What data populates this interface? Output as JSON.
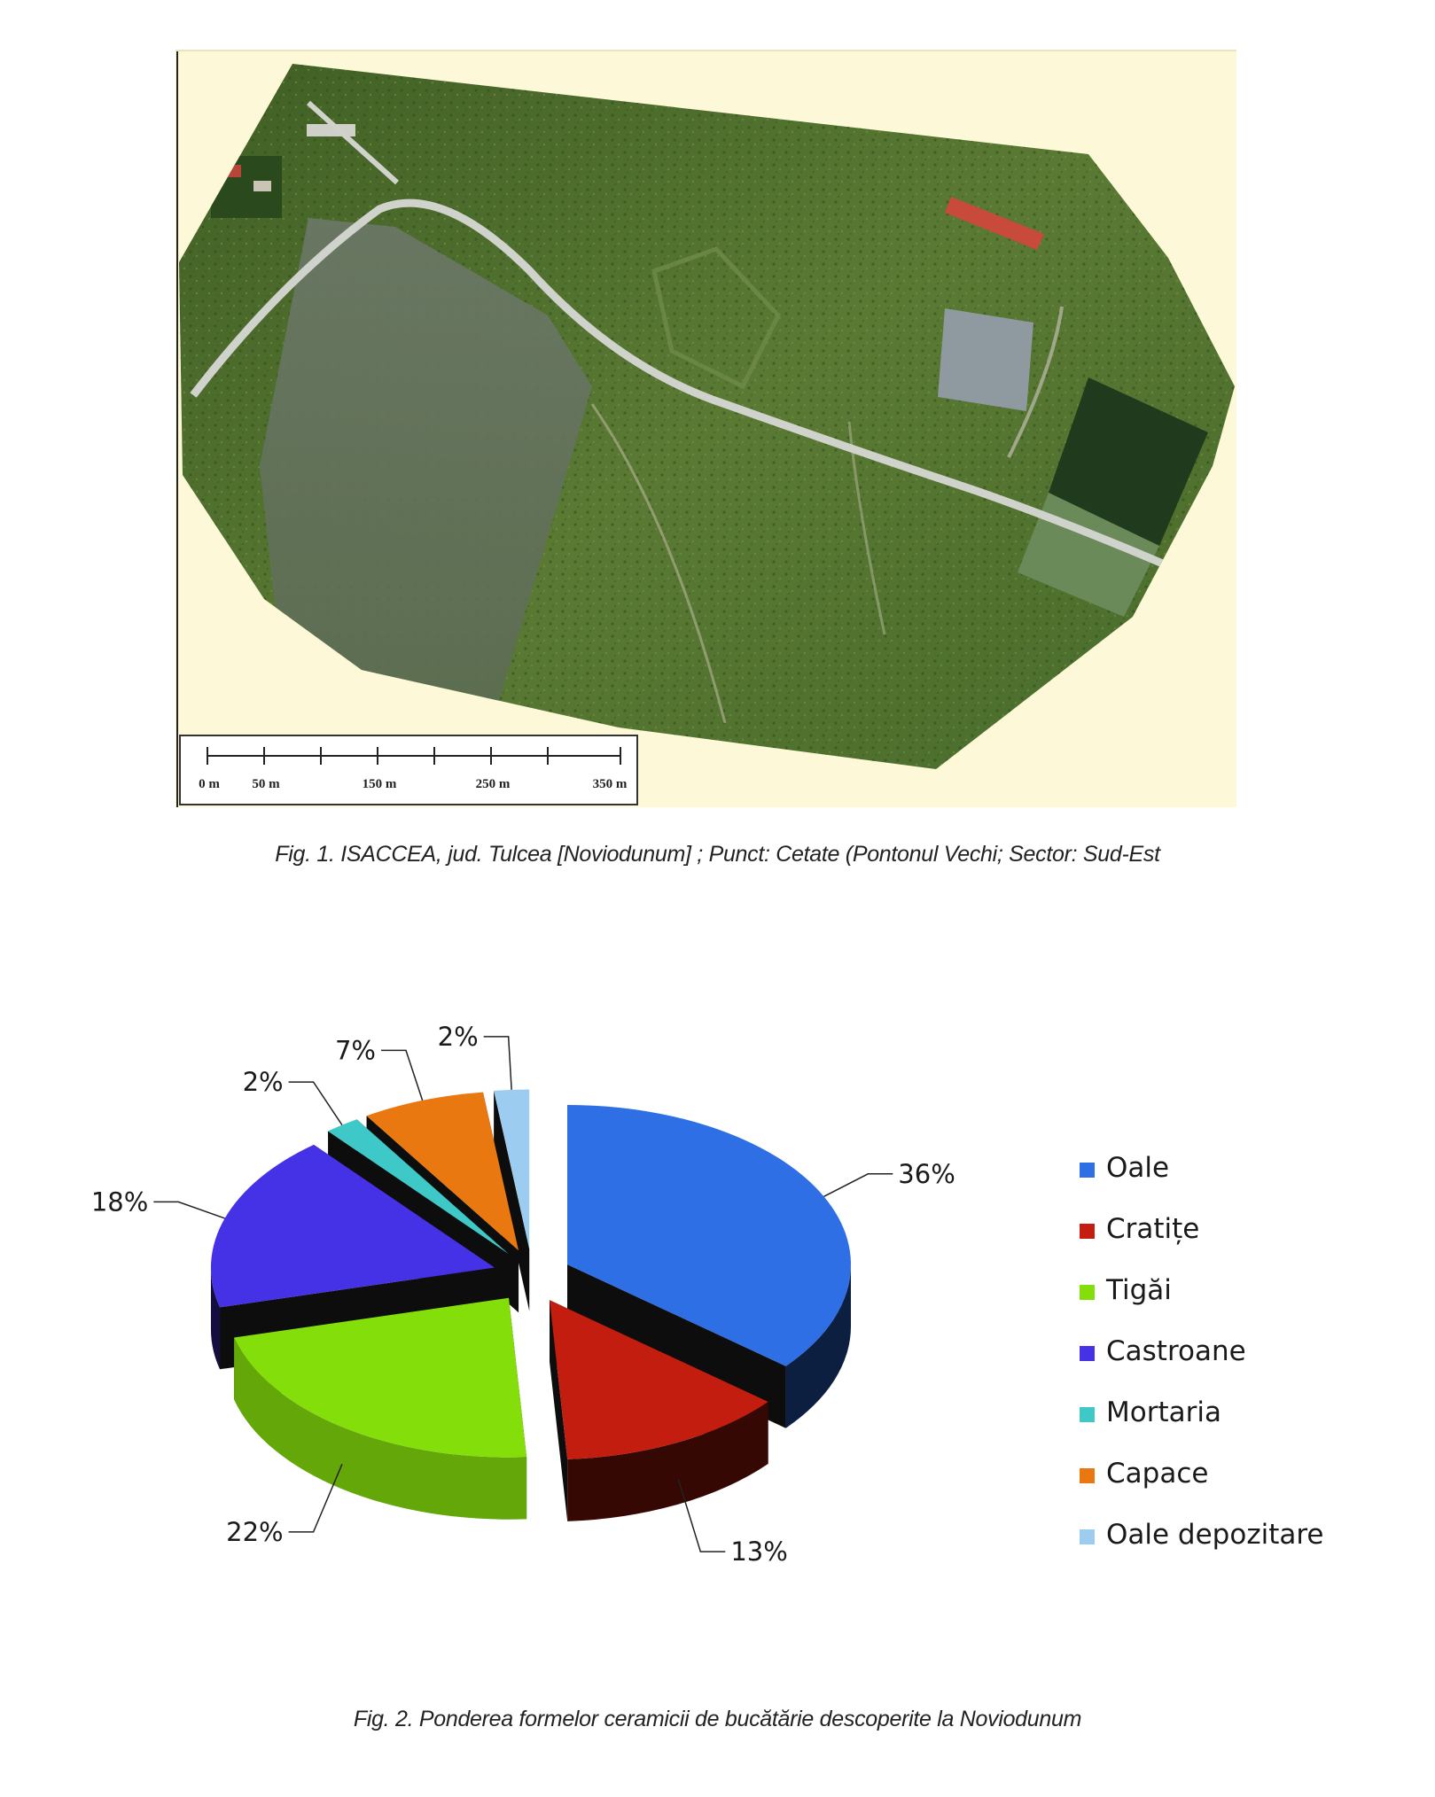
{
  "figure1": {
    "caption": "Fig. 1. ISACCEA, jud. Tulcea [Noviodunum] ; Punct: Cetate (Pontonul Vechi; Sector: Sud-Est",
    "scale_labels": [
      "0 m",
      "50 m",
      "150 m",
      "250 m",
      "350 m"
    ],
    "colors": {
      "background": "#fdf8d8",
      "vegetation": "#4f6e2c",
      "road": "#cfd3cc",
      "roof": "#c84a3a"
    }
  },
  "figure2": {
    "caption": "Fig. 2. Ponderea formelor ceramicii de bucătărie descoperite la Noviodunum",
    "chart_data": {
      "type": "pie",
      "style": "3d-exploded",
      "legend_position": "right",
      "series": [
        {
          "name": "Oale",
          "value": 36,
          "label": "36%",
          "color": "#2f6fe6"
        },
        {
          "name": "Cratițe",
          "value": 13,
          "label": "13%",
          "color": "#c21d0e"
        },
        {
          "name": "Tigăi",
          "value": 22,
          "label": "22%",
          "color": "#84de0a"
        },
        {
          "name": "Castroane",
          "value": 18,
          "label": "18%",
          "color": "#4632e6"
        },
        {
          "name": "Mortaria",
          "value": 2,
          "label": "2%",
          "color": "#3ec9c8"
        },
        {
          "name": "Capace",
          "value": 7,
          "label": "7%",
          "color": "#e8780f"
        },
        {
          "name": "Oale depozitare",
          "value": 2,
          "label": "2%",
          "color": "#9ccdf0"
        }
      ]
    }
  }
}
